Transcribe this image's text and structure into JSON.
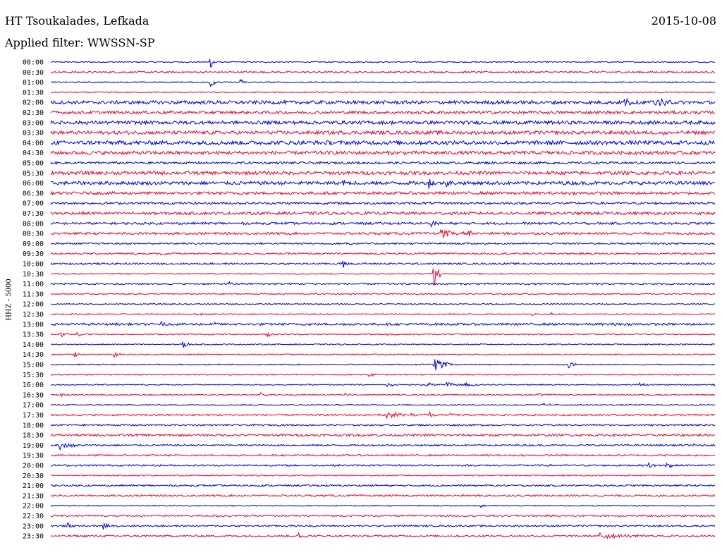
{
  "header": {
    "station": "HT Tsoukalades, Lefkada",
    "date": "2015-10-08",
    "filter_label": "Applied filter:",
    "filter_value": "WWSSN-SP"
  },
  "colors": {
    "even_row": "#0000d8",
    "odd_row": "#ee0030",
    "text": "#000000"
  },
  "chart_data": {
    "type": "line",
    "title": "HT Tsoukalades, Lefkada",
    "subtitle": "Applied filter: WWSSN-SP",
    "ylabel": "HHZ - 5000",
    "xlabel": "",
    "x_unit": "minutes past row start",
    "xlim": [
      0,
      30
    ],
    "rows": [
      "00:00",
      "00:30",
      "01:00",
      "01:30",
      "02:00",
      "02:30",
      "03:00",
      "03:30",
      "04:00",
      "04:30",
      "05:00",
      "05:30",
      "06:00",
      "06:30",
      "07:00",
      "07:30",
      "08:00",
      "08:30",
      "09:00",
      "09:30",
      "10:00",
      "10:30",
      "11:00",
      "11:30",
      "12:00",
      "12:30",
      "13:00",
      "13:30",
      "14:00",
      "14:30",
      "15:00",
      "15:30",
      "16:00",
      "16:30",
      "17:00",
      "17:30",
      "18:00",
      "18:30",
      "19:00",
      "19:30",
      "20:00",
      "20:30",
      "21:00",
      "21:30",
      "22:00",
      "22:30",
      "23:00",
      "23:30"
    ],
    "row_colors": [
      "blue",
      "red"
    ],
    "noise_level": [
      1,
      1.5,
      1,
      1,
      3,
      2.5,
      3,
      3,
      3.5,
      3,
      2,
      3,
      3,
      2.5,
      2,
      2.5,
      2,
      2,
      1.5,
      1.5,
      1.5,
      1,
      1.5,
      1,
      1,
      1,
      2,
      1,
      1,
      1,
      1,
      1,
      1,
      1,
      1,
      1.5,
      1.5,
      2,
      1.5,
      1.5,
      1.5,
      1,
      1.5,
      1.5,
      1,
      1.5,
      1.5,
      1.5
    ],
    "events": [
      {
        "row": "00:00",
        "t": 7.2,
        "amp": 10,
        "dur": 0.3
      },
      {
        "row": "01:00",
        "t": 7.2,
        "amp": 7,
        "dur": 0.3
      },
      {
        "row": "01:00",
        "t": 8.6,
        "amp": 5,
        "dur": 0.3
      },
      {
        "row": "02:00",
        "t": 25.9,
        "amp": 5,
        "dur": 0.5
      },
      {
        "row": "02:00",
        "t": 27.3,
        "amp": 6,
        "dur": 0.4
      },
      {
        "row": "02:00",
        "t": 27.6,
        "amp": 5,
        "dur": 0.4
      },
      {
        "row": "03:30",
        "t": 27.6,
        "amp": 4,
        "dur": 0.5
      },
      {
        "row": "06:00",
        "t": 13.2,
        "amp": 3,
        "dur": 1.2
      },
      {
        "row": "06:00",
        "t": 17.1,
        "amp": 8,
        "dur": 0.3
      },
      {
        "row": "06:00",
        "t": 17.8,
        "amp": 5,
        "dur": 0.3
      },
      {
        "row": "08:00",
        "t": 17.2,
        "amp": 6,
        "dur": 0.3
      },
      {
        "row": "08:30",
        "t": 17.6,
        "amp": 6,
        "dur": 1.2
      },
      {
        "row": "08:30",
        "t": 18.9,
        "amp": 5,
        "dur": 0.3
      },
      {
        "row": "09:00",
        "t": 13.3,
        "amp": 6,
        "dur": 0.3
      },
      {
        "row": "09:30",
        "t": 5.0,
        "amp": 3,
        "dur": 0.4
      },
      {
        "row": "10:00",
        "t": 13.2,
        "amp": 5,
        "dur": 0.3
      },
      {
        "row": "10:00",
        "t": 15.3,
        "amp": 2,
        "dur": 0.3
      },
      {
        "row": "10:30",
        "t": 17.3,
        "amp": 18,
        "dur": 0.3
      },
      {
        "row": "11:00",
        "t": 8.1,
        "amp": 3,
        "dur": 0.3
      },
      {
        "row": "12:30",
        "t": 6.5,
        "amp": 1.5,
        "dur": 1.0
      },
      {
        "row": "12:30",
        "t": 21.7,
        "amp": 3,
        "dur": 0.3
      },
      {
        "row": "12:30",
        "t": 22.6,
        "amp": 2,
        "dur": 0.3
      },
      {
        "row": "13:00",
        "t": 5.0,
        "amp": 3,
        "dur": 0.3
      },
      {
        "row": "13:00",
        "t": 7.4,
        "amp": 3,
        "dur": 0.3
      },
      {
        "row": "13:00",
        "t": 25.5,
        "amp": 3,
        "dur": 0.3
      },
      {
        "row": "13:30",
        "t": 0.5,
        "amp": 4,
        "dur": 0.3
      },
      {
        "row": "13:30",
        "t": 1.2,
        "amp": 4,
        "dur": 0.3
      },
      {
        "row": "13:30",
        "t": 9.8,
        "amp": 4,
        "dur": 0.3
      },
      {
        "row": "13:30",
        "t": 15.2,
        "amp": 2,
        "dur": 0.5
      },
      {
        "row": "14:00",
        "t": 6.0,
        "amp": 6,
        "dur": 0.3
      },
      {
        "row": "14:30",
        "t": 1.1,
        "amp": 4,
        "dur": 0.3
      },
      {
        "row": "14:30",
        "t": 2.9,
        "amp": 4,
        "dur": 0.3
      },
      {
        "row": "15:00",
        "t": 17.3,
        "amp": 10,
        "dur": 0.8
      },
      {
        "row": "15:00",
        "t": 23.4,
        "amp": 5,
        "dur": 0.3
      },
      {
        "row": "15:30",
        "t": 14.4,
        "amp": 3,
        "dur": 0.3
      },
      {
        "row": "16:00",
        "t": 15.2,
        "amp": 3,
        "dur": 0.3
      },
      {
        "row": "16:00",
        "t": 17.0,
        "amp": 5,
        "dur": 0.4
      },
      {
        "row": "16:00",
        "t": 17.9,
        "amp": 4,
        "dur": 0.8
      },
      {
        "row": "16:00",
        "t": 18.7,
        "amp": 2.5,
        "dur": 1.0
      },
      {
        "row": "16:00",
        "t": 26.6,
        "amp": 2.5,
        "dur": 0.4
      },
      {
        "row": "16:00",
        "t": 30.0,
        "amp": 1.5,
        "dur": 0.3
      },
      {
        "row": "16:30",
        "t": 0.5,
        "amp": 2,
        "dur": 0.4
      },
      {
        "row": "16:30",
        "t": 9.5,
        "amp": 3,
        "dur": 0.3
      },
      {
        "row": "16:30",
        "t": 13.3,
        "amp": 2,
        "dur": 0.3
      },
      {
        "row": "16:30",
        "t": 22.0,
        "amp": 2,
        "dur": 0.8
      },
      {
        "row": "17:00",
        "t": 22.2,
        "amp": 2,
        "dur": 0.8
      },
      {
        "row": "17:30",
        "t": 15.2,
        "amp": 5,
        "dur": 1.8
      },
      {
        "row": "17:30",
        "t": 17.1,
        "amp": 4,
        "dur": 0.3
      },
      {
        "row": "17:30",
        "t": 18.0,
        "amp": 4,
        "dur": 0.3
      },
      {
        "row": "19:00",
        "t": 0.4,
        "amp": 6,
        "dur": 0.9
      },
      {
        "row": "19:00",
        "t": 29.0,
        "amp": 1.5,
        "dur": 0.3
      },
      {
        "row": "19:00",
        "t": 30.0,
        "amp": 2,
        "dur": 0.3
      },
      {
        "row": "20:00",
        "t": 27.0,
        "amp": 4,
        "dur": 0.4
      },
      {
        "row": "20:00",
        "t": 27.8,
        "amp": 4,
        "dur": 0.4
      },
      {
        "row": "22:00",
        "t": 19.4,
        "amp": 1.5,
        "dur": 0.3
      },
      {
        "row": "22:30",
        "t": 7.4,
        "amp": 1.5,
        "dur": 0.6
      },
      {
        "row": "23:00",
        "t": 0.8,
        "amp": 4,
        "dur": 0.3
      },
      {
        "row": "23:00",
        "t": 2.4,
        "amp": 6,
        "dur": 0.3
      },
      {
        "row": "23:00",
        "t": 27.2,
        "amp": 1.5,
        "dur": 0.4
      },
      {
        "row": "23:30",
        "t": 11.2,
        "amp": 5,
        "dur": 0.4
      },
      {
        "row": "23:30",
        "t": 24.8,
        "amp": 5,
        "dur": 2.0
      }
    ]
  }
}
